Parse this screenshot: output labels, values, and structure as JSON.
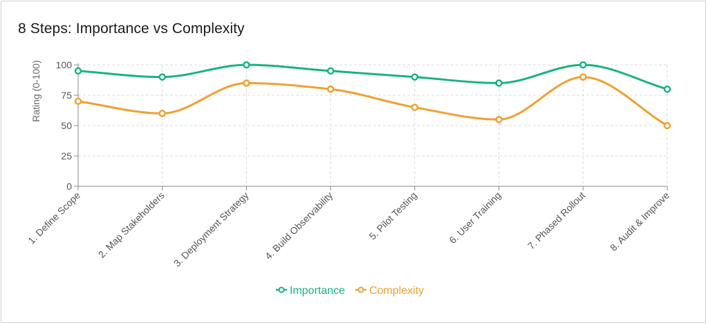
{
  "chart_data": {
    "type": "line",
    "title": "8 Steps: Importance vs Complexity",
    "xlabel": "",
    "ylabel": "Rating (0-100)",
    "ylim": [
      0,
      100
    ],
    "yticks": [
      0,
      25,
      50,
      75,
      100
    ],
    "grid": true,
    "legend_position": "bottom",
    "categories": [
      "1. Define Scope",
      "2. Map Stakeholders",
      "3. Deployment Strategy",
      "4. Build Observability",
      "5. Pilot Testing",
      "6. User Training",
      "7. Phased Rollout",
      "8. Audit & Improve"
    ],
    "series": [
      {
        "name": "Importance",
        "color": "#18b37e",
        "values": [
          95,
          90,
          100,
          95,
          90,
          85,
          100,
          80
        ]
      },
      {
        "name": "Complexity",
        "color": "#f0a030",
        "values": [
          70,
          60,
          85,
          80,
          65,
          55,
          90,
          50
        ]
      }
    ]
  }
}
